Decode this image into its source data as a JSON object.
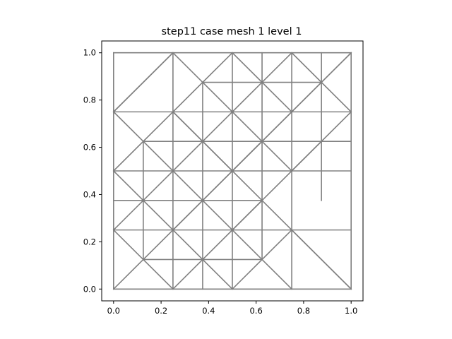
{
  "chart_data": {
    "type": "mesh",
    "title": "step11 case mesh 1 level 1",
    "xlabel": "",
    "ylabel": "",
    "xlim": [
      -0.05,
      1.05
    ],
    "ylim": [
      -0.05,
      1.05
    ],
    "xticks": [
      0.0,
      0.2,
      0.4,
      0.6,
      0.8,
      1.0
    ],
    "yticks": [
      0.0,
      0.2,
      0.4,
      0.6,
      0.8,
      1.0
    ],
    "xtick_labels": [
      "0.0",
      "0.2",
      "0.4",
      "0.6",
      "0.8",
      "1.0"
    ],
    "ytick_labels": [
      "0.0",
      "0.2",
      "0.4",
      "0.6",
      "0.8",
      "1.0"
    ],
    "grid": false,
    "edge_color": "#808080",
    "edges": [
      [
        0,
        0,
        1,
        0
      ],
      [
        0,
        1,
        1,
        1
      ],
      [
        0,
        0,
        0,
        1
      ],
      [
        1,
        0,
        1,
        1
      ],
      [
        0,
        0.25,
        1,
        0.25
      ],
      [
        0,
        0.5,
        1,
        0.5
      ],
      [
        0,
        0.75,
        1,
        0.75
      ],
      [
        0.25,
        0,
        0.25,
        1
      ],
      [
        0.5,
        0,
        0.5,
        1
      ],
      [
        0.75,
        0,
        0.75,
        1
      ],
      [
        0.375,
        0.875,
        0.875,
        0.875
      ],
      [
        0,
        0.375,
        0.625,
        0.375
      ],
      [
        0.125,
        0.625,
        1,
        0.625
      ],
      [
        0.125,
        0.125,
        0.625,
        0.125
      ],
      [
        0.125,
        0.125,
        0.125,
        0.625
      ],
      [
        0.375,
        0,
        0.375,
        0.875
      ],
      [
        0.625,
        0.125,
        0.625,
        1
      ],
      [
        0.875,
        0.375,
        0.875,
        1
      ],
      [
        0,
        0,
        0.625,
        0.625
      ],
      [
        0,
        0.25,
        0.5,
        0.75
      ],
      [
        0.25,
        0,
        0.625,
        0.375
      ],
      [
        0,
        0.5,
        0.25,
        0.75
      ],
      [
        0.5,
        0,
        0.75,
        0.25
      ],
      [
        0,
        0.75,
        0.25,
        1
      ],
      [
        0.25,
        0.25,
        1,
        1
      ],
      [
        0.5,
        0.25,
        0.875,
        0.625
      ],
      [
        0.25,
        0.75,
        0.5,
        1
      ],
      [
        0.5,
        0.5,
        1,
        1
      ],
      [
        0.5,
        0.75,
        0.75,
        1
      ],
      [
        0.75,
        0.5,
        1,
        0.75
      ],
      [
        0,
        0.25,
        0.25,
        0
      ],
      [
        0,
        0.5,
        0.5,
        0
      ],
      [
        0,
        0.75,
        0.75,
        0
      ],
      [
        0.25,
        0.75,
        1,
        0
      ],
      [
        0,
        0.75,
        0.25,
        1
      ],
      [
        0.25,
        0.75,
        0.5,
        0.5
      ],
      [
        0.5,
        0.75,
        0.75,
        0.5
      ],
      [
        0.5,
        1,
        0.75,
        0.75
      ],
      [
        0.75,
        1,
        1,
        0.75
      ],
      [
        0.25,
        1,
        0.5,
        0.75
      ],
      [
        0.75,
        0.25,
        1,
        0
      ]
    ]
  }
}
